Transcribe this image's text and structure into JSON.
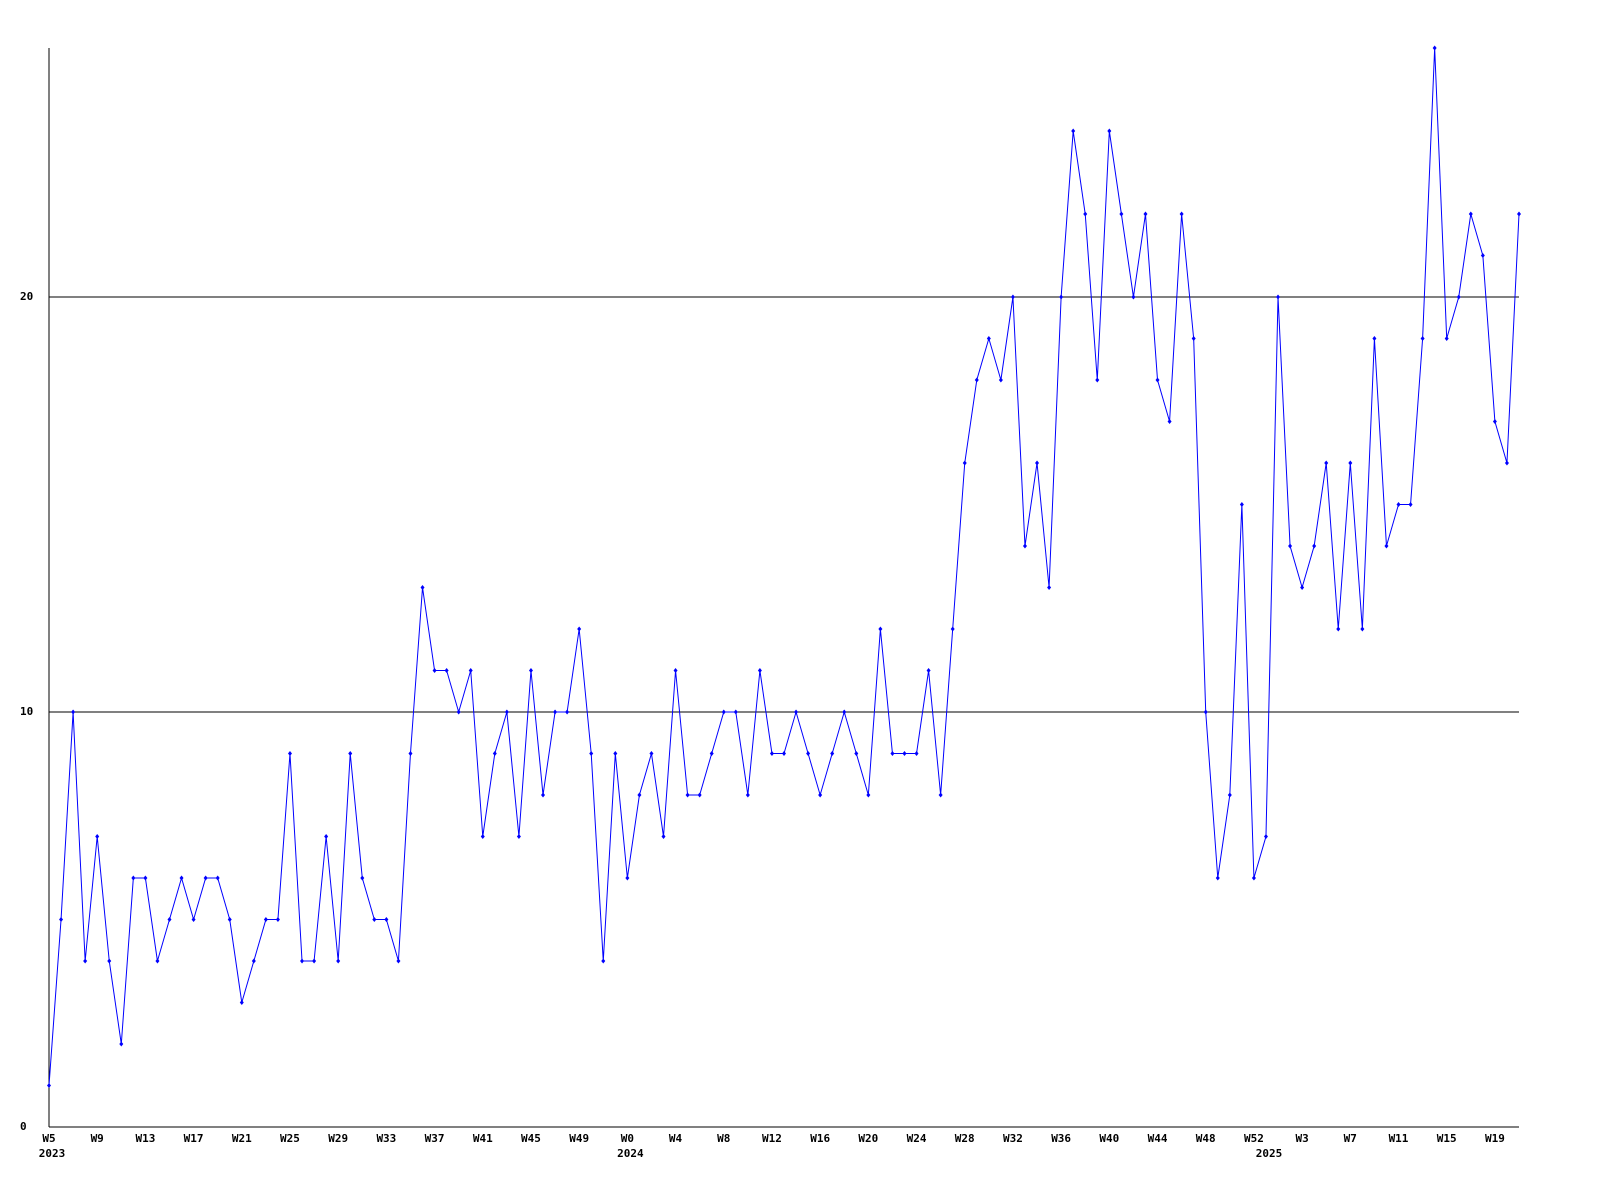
{
  "chart_data": {
    "type": "line",
    "categories": [
      "W5",
      null,
      null,
      null,
      "W9",
      null,
      null,
      null,
      "W13",
      null,
      null,
      null,
      "W17",
      null,
      null,
      null,
      "W21",
      null,
      null,
      null,
      "W25",
      null,
      null,
      null,
      "W29",
      null,
      null,
      null,
      "W33",
      null,
      null,
      null,
      "W37",
      null,
      null,
      null,
      "W41",
      null,
      null,
      null,
      "W45",
      null,
      null,
      null,
      "W49",
      null,
      null,
      null,
      "W0",
      null,
      null,
      null,
      "W4",
      null,
      null,
      null,
      "W8",
      null,
      null,
      null,
      "W12",
      null,
      null,
      null,
      "W16",
      null,
      null,
      null,
      "W20",
      null,
      null,
      null,
      "W24",
      null,
      null,
      null,
      "W28",
      null,
      null,
      null,
      "W32",
      null,
      null,
      null,
      "W36",
      null,
      null,
      null,
      "W40",
      null,
      null,
      null,
      "W44",
      null,
      null,
      null,
      "W48",
      null,
      null,
      null,
      "W52",
      null,
      null,
      null,
      "W3",
      null,
      null,
      null,
      "W7",
      null,
      null,
      null,
      "W11",
      null,
      null,
      null,
      "W15",
      null,
      null,
      null,
      "W19",
      null,
      null
    ],
    "year_labels": [
      "2023",
      null,
      null,
      null,
      null,
      null,
      null,
      null,
      null,
      null,
      null,
      null,
      null,
      null,
      null,
      null,
      null,
      null,
      null,
      null,
      null,
      null,
      null,
      null,
      null,
      null,
      null,
      null,
      null,
      null,
      null,
      null,
      null,
      null,
      null,
      null,
      null,
      null,
      null,
      null,
      null,
      null,
      null,
      null,
      null,
      null,
      null,
      null,
      "2024",
      null,
      null,
      null,
      null,
      null,
      null,
      null,
      null,
      null,
      null,
      null,
      null,
      null,
      null,
      null,
      null,
      null,
      null,
      null,
      null,
      null,
      null,
      null,
      null,
      null,
      null,
      null,
      null,
      null,
      null,
      null,
      null,
      null,
      null,
      null,
      null,
      null,
      null,
      null,
      null,
      null,
      null,
      null,
      null,
      null,
      null,
      null,
      null,
      null,
      null,
      null,
      null,
      "2025",
      null,
      null,
      null,
      null,
      null,
      null,
      null,
      null,
      null,
      null,
      null,
      null,
      null,
      null,
      null,
      null,
      null,
      null,
      null,
      null
    ],
    "values": [
      1,
      5,
      10,
      4,
      7,
      4,
      2,
      6,
      6,
      4,
      5,
      6,
      5,
      6,
      6,
      5,
      3,
      4,
      5,
      5,
      9,
      4,
      4,
      7,
      4,
      9,
      6,
      5,
      5,
      4,
      9,
      13,
      11,
      11,
      10,
      11,
      7,
      9,
      10,
      7,
      11,
      8,
      10,
      10,
      12,
      9,
      4,
      9,
      6,
      8,
      9,
      7,
      11,
      8,
      8,
      9,
      10,
      10,
      8,
      11,
      9,
      9,
      10,
      9,
      8,
      9,
      10,
      9,
      8,
      12,
      9,
      9,
      9,
      11,
      8,
      12,
      16,
      18,
      19,
      18,
      20,
      14,
      16,
      13,
      20,
      24,
      22,
      18,
      24,
      22,
      20,
      22,
      18,
      17,
      22,
      19,
      10,
      6,
      8,
      15,
      6,
      7,
      20,
      14,
      13,
      14,
      16,
      12,
      16,
      12,
      19,
      14,
      15,
      15,
      19,
      26,
      19,
      20,
      22,
      21,
      17,
      16,
      22
    ],
    "color": "#0000ff",
    "ylim": [
      0,
      26
    ],
    "yticks": [
      0,
      10,
      20
    ],
    "grid": true
  }
}
